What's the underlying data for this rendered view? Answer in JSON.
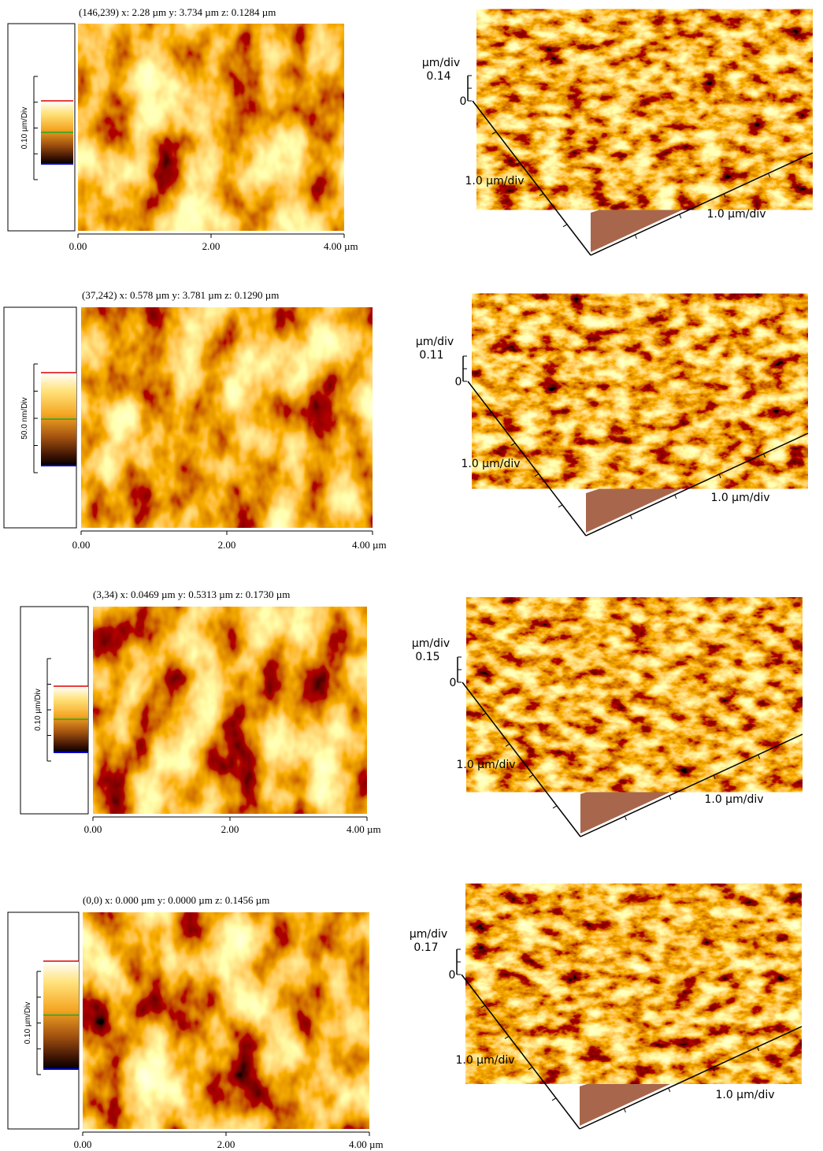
{
  "panels": [
    {
      "header": "(146,239)  x: 2.28 µm   y: 3.734 µm  z: 0.1284 µm",
      "colorbar_label": "0.10 µm/Div",
      "x_ticks": [
        "0.00",
        "2.00",
        "4.00 µm"
      ],
      "view3d": {
        "z_unit": "µm/div",
        "z_max": "0.14",
        "z_zero": "0",
        "x_label": "1.0 µm/div",
        "y_label": "1.0 µm/div"
      }
    },
    {
      "header": "(37,242)  x: 0.578 µm   y: 3.781 µm  z: 0.1290 µm",
      "colorbar_label": "50.0 nm/Div",
      "x_ticks": [
        "0.00",
        "2.00",
        "4.00 µm"
      ],
      "view3d": {
        "z_unit": "µm/div",
        "z_max": "0.11",
        "z_zero": "0",
        "x_label": "1.0 µm/div",
        "y_label": "1.0 µm/div"
      }
    },
    {
      "header": "(3,34)  x: 0.0469 µm   y: 0.5313 µm  z: 0.1730 µm",
      "colorbar_label": "0.10 µm/Div",
      "x_ticks": [
        "0.00",
        "2.00",
        "4.00 µm"
      ],
      "view3d": {
        "z_unit": "µm/div",
        "z_max": "0.15",
        "z_zero": "0",
        "x_label": "1.0 µm/div",
        "y_label": "1.0 µm/div"
      }
    },
    {
      "header": "(0,0)  x: 0.000 µm   y: 0.0000 µm  z: 0.1456 µm",
      "colorbar_label": "0.10 µm/Div",
      "x_ticks": [
        "0.00",
        "2.00",
        "4.00 µm"
      ],
      "view3d": {
        "z_unit": "µm/div",
        "z_max": "0.17",
        "z_zero": "0",
        "x_label": "1.0 µm/div",
        "y_label": "1.0 µm/div"
      }
    }
  ]
}
